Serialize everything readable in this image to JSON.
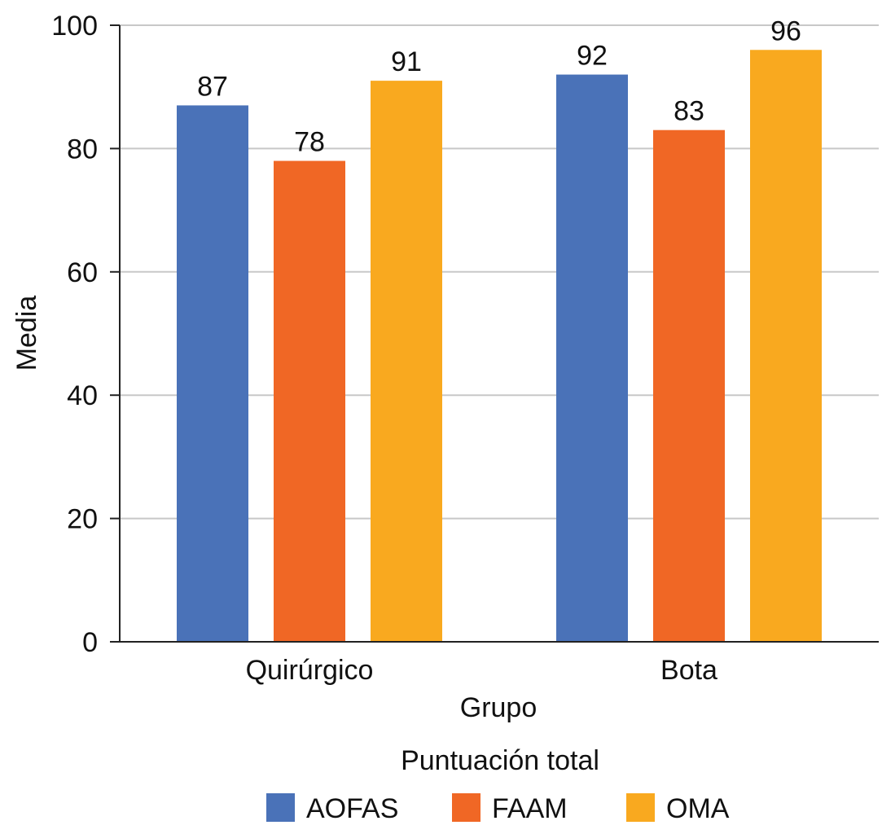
{
  "chart_data": {
    "type": "bar",
    "categories": [
      "Quirúrgico",
      "Bota"
    ],
    "series": [
      {
        "name": "AOFAS",
        "color": "#4a72b8",
        "values": [
          87,
          92
        ],
        "labels": [
          "87",
          "92"
        ]
      },
      {
        "name": "FAAM",
        "color": "#f06725",
        "values": [
          78,
          83
        ],
        "labels": [
          "78",
          "83"
        ]
      },
      {
        "name": "OMA",
        "color": "#f9a91f",
        "values": [
          91,
          96
        ],
        "labels": [
          "91",
          "96"
        ]
      }
    ],
    "xlabel": "Grupo",
    "ylabel": "Media",
    "ylim": [
      0,
      100
    ],
    "yticks": [
      "0",
      "20",
      "40",
      "60",
      "80",
      "100"
    ],
    "grid": true,
    "legend_title": "Puntuación total",
    "legend_position": "bottom",
    "gridline_color": "#c8c8c8",
    "axis_color": "#222222"
  }
}
